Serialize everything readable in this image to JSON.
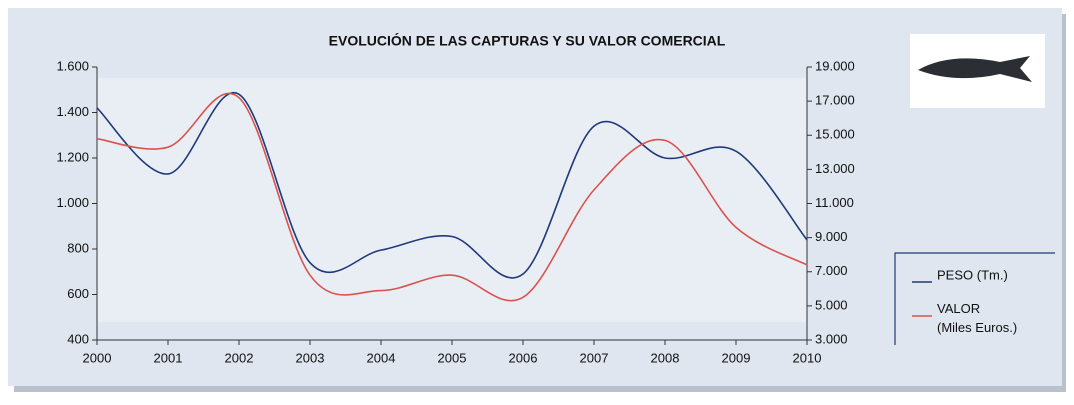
{
  "chart_data": {
    "type": "line",
    "title": "EVOLUCIÓN DE LAS CAPTURAS Y SU VALOR COMERCIAL",
    "x": [
      2000,
      2001,
      2002,
      2003,
      2004,
      2005,
      2006,
      2007,
      2008,
      2009,
      2010
    ],
    "xlim": [
      2000,
      2010
    ],
    "xticks": [
      2000,
      2001,
      2002,
      2003,
      2004,
      2005,
      2006,
      2007,
      2008,
      2009,
      2010
    ],
    "ylim": [
      400,
      1600
    ],
    "yticks": [
      400,
      600,
      800,
      {
        "value": 1000,
        "label": "1.000"
      },
      {
        "value": 1200,
        "label": "1.200"
      },
      {
        "value": 1400,
        "label": "1.400"
      },
      {
        "value": 1600,
        "label": "1.600"
      }
    ],
    "y2lim": [
      3000,
      19000
    ],
    "y2ticks": [
      {
        "value": 3000,
        "label": "3.000"
      },
      {
        "value": 5000,
        "label": "5.000"
      },
      {
        "value": 7000,
        "label": "7.000"
      },
      {
        "value": 9000,
        "label": "9.000"
      },
      {
        "value": 11000,
        "label": "11.000"
      },
      {
        "value": 13000,
        "label": "13.000"
      },
      {
        "value": 15000,
        "label": "15.000"
      },
      {
        "value": 17000,
        "label": "17.000"
      },
      {
        "value": 19000,
        "label": "19.000"
      }
    ],
    "series": [
      {
        "name": "PESO (Tm.)",
        "color": "#1f3a7a",
        "values": [
          1420,
          1130,
          1480,
          740,
          795,
          855,
          690,
          1340,
          1200,
          1230,
          840
        ]
      },
      {
        "name": "VALOR (Miles Euros.)",
        "color": "#d9534f",
        "axis": "y2",
        "values": [
          14800,
          14300,
          17200,
          6800,
          5900,
          6800,
          5500,
          11800,
          14700,
          9600,
          7400
        ]
      }
    ]
  }
}
